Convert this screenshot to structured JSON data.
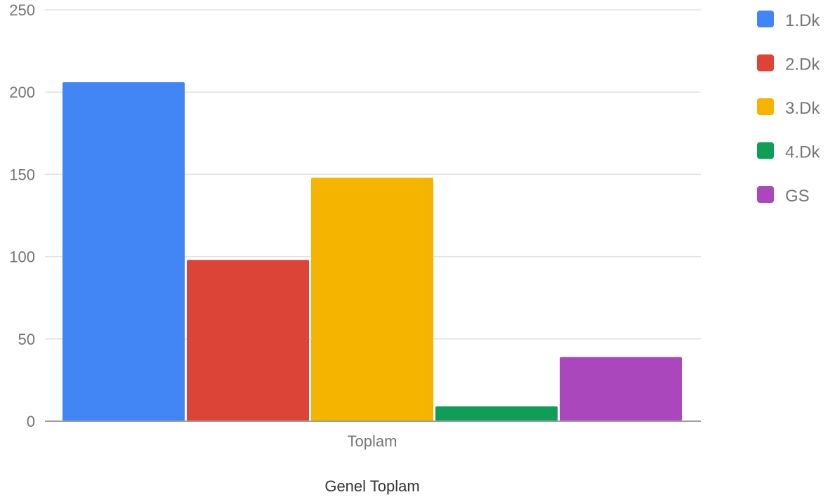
{
  "chart_data": {
    "type": "bar",
    "categories": [
      "Toplam"
    ],
    "series": [
      {
        "name": "1.Dk",
        "values": [
          206
        ],
        "color": "#4285f4"
      },
      {
        "name": "2.Dk",
        "values": [
          98
        ],
        "color": "#db4437"
      },
      {
        "name": "3.Dk",
        "values": [
          148
        ],
        "color": "#f4b400"
      },
      {
        "name": "4.Dk",
        "values": [
          9
        ],
        "color": "#0f9d58"
      },
      {
        "name": "GS",
        "values": [
          39
        ],
        "color": "#ab47bc"
      }
    ],
    "title": "",
    "xlabel": "Genel Toplam",
    "ylabel": "",
    "ylim": [
      0,
      250
    ],
    "yticks": [
      0,
      50,
      100,
      150,
      200,
      250
    ],
    "grid": true,
    "legend_position": "right"
  }
}
